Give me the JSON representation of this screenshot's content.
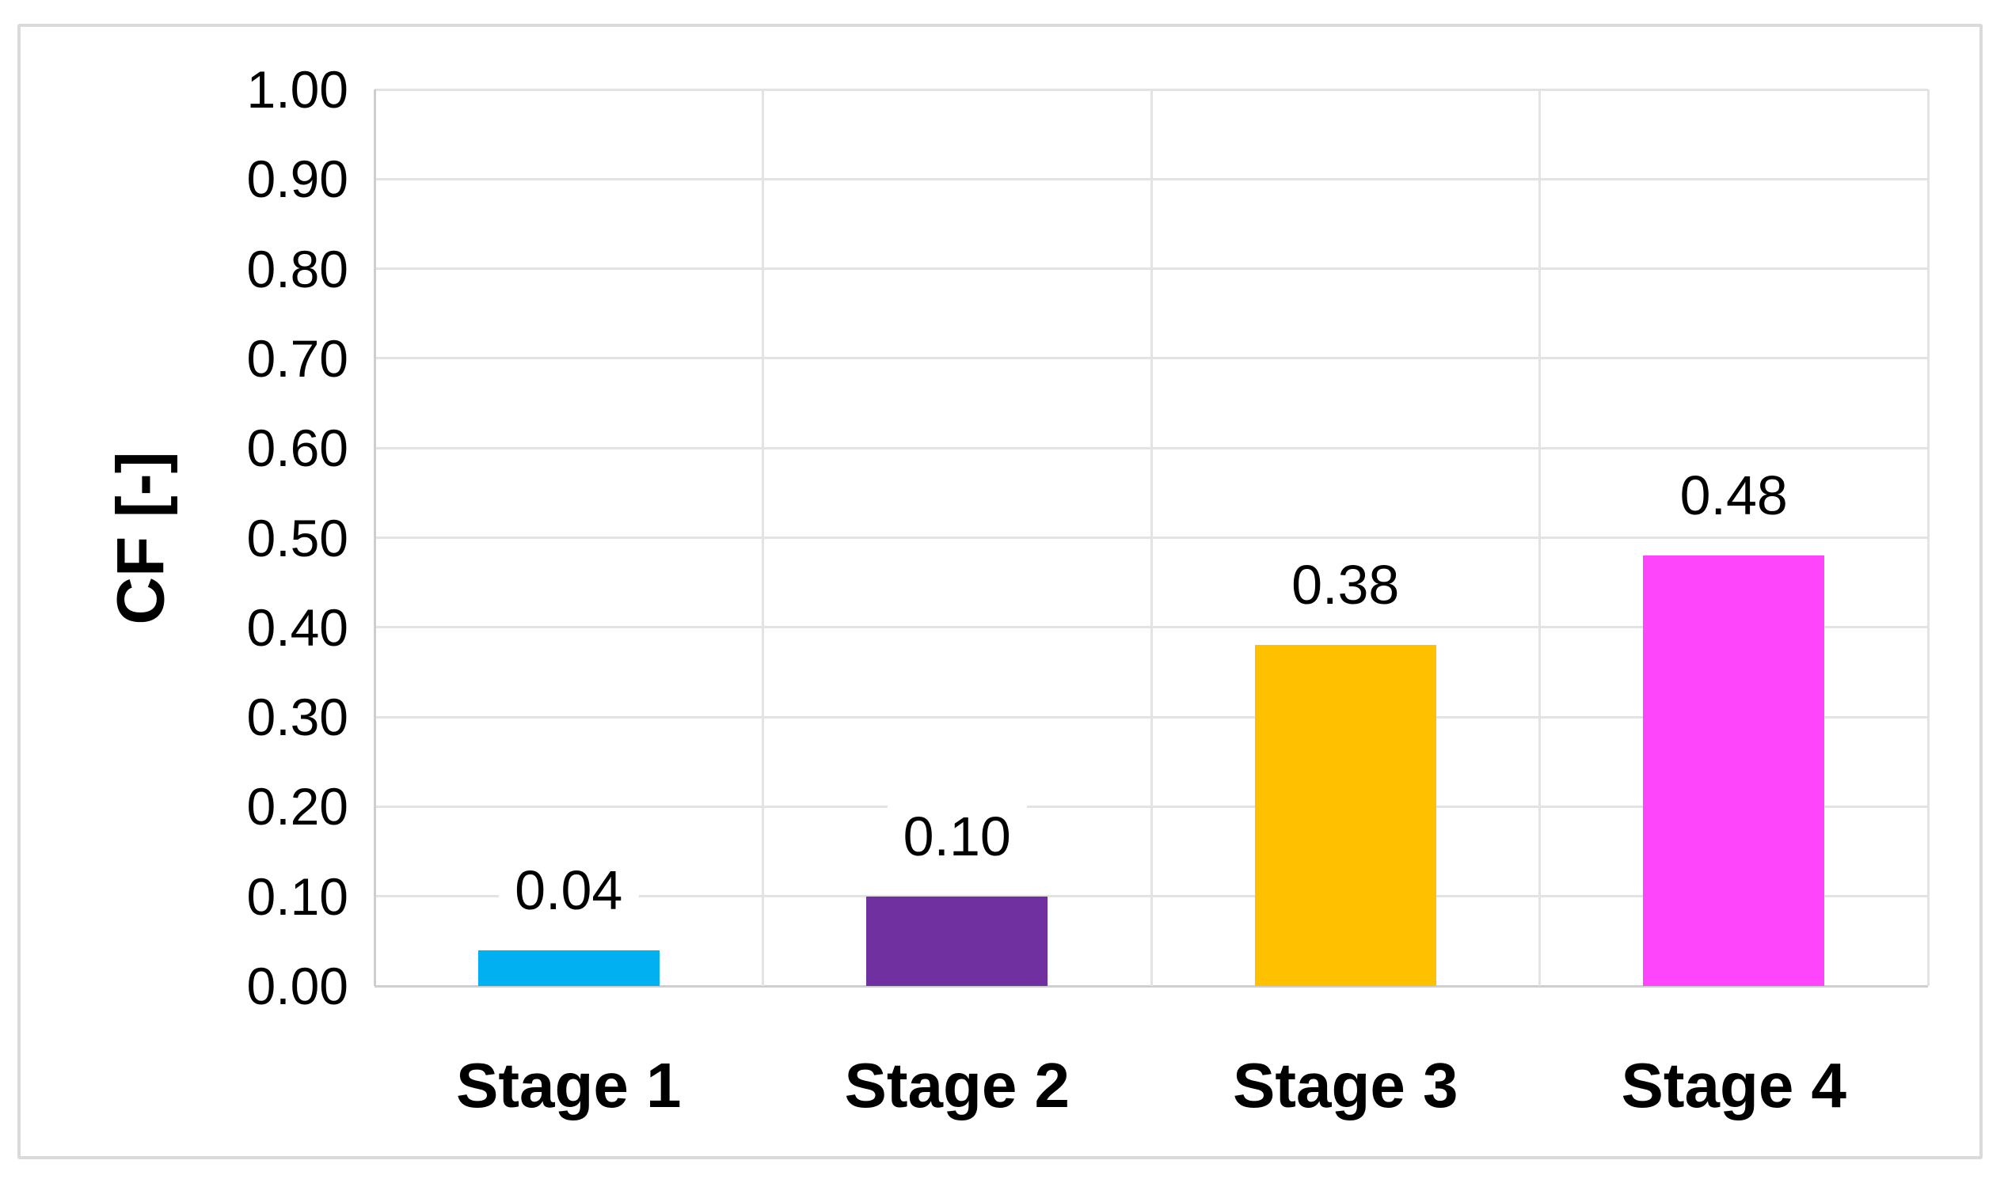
{
  "figure": {
    "background_color": "#FFFFFF",
    "border_color": "#D8DADC"
  },
  "chart_data": {
    "type": "bar",
    "title": "",
    "categories": [
      "Stage 1",
      "Stage 2",
      "Stage 3",
      "Stage 4"
    ],
    "values": [
      0.04,
      0.1,
      0.38,
      0.48
    ],
    "data_labels": [
      "0.04",
      "0.10",
      "0.38",
      "0.48"
    ],
    "bar_colors": [
      "#00B0F0",
      "#7030A0",
      "#FFC000",
      "#FF45FB"
    ],
    "xlabel": "",
    "ylabel": "CF [-]",
    "ylim": [
      0,
      1
    ],
    "ytick_interval": 0.1,
    "ytick_labels": [
      "0.00",
      "0.10",
      "0.20",
      "0.30",
      "0.40",
      "0.50",
      "0.60",
      "0.70",
      "0.80",
      "0.90",
      "1.00"
    ],
    "grid": "horizontal gridlines every 0.10 and vertical category-boundary gridlines",
    "gridline_color": "#E2E3E4",
    "axis_line_color": "#CCCED0",
    "legend_position": "none"
  }
}
